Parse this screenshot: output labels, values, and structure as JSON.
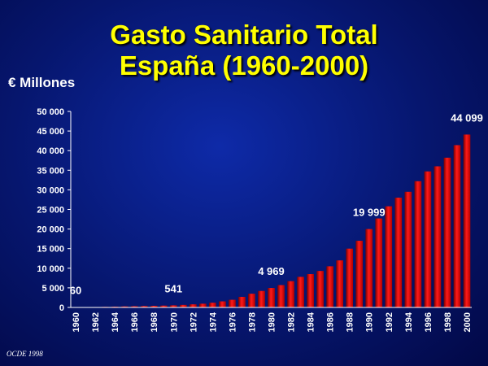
{
  "chart_data": {
    "type": "bar",
    "title": "Gasto Sanitario Total",
    "subtitle": "España (1960-2000)",
    "ylabel": "€ Millones",
    "source": "OCDE 1998",
    "ylim": [
      0,
      50000
    ],
    "yticks": [
      "50 000",
      "45 000",
      "40 000",
      "35 000",
      "30 000",
      "25 000",
      "20 000",
      "15 000",
      "10 000",
      "5 000",
      "0"
    ],
    "categories": [
      "1960",
      "1961",
      "1962",
      "1963",
      "1964",
      "1965",
      "1966",
      "1967",
      "1968",
      "1969",
      "1970",
      "1971",
      "1972",
      "1973",
      "1974",
      "1975",
      "1976",
      "1977",
      "1978",
      "1979",
      "1980",
      "1981",
      "1982",
      "1983",
      "1984",
      "1985",
      "1986",
      "1987",
      "1988",
      "1989",
      "1990",
      "1991",
      "1992",
      "1993",
      "1994",
      "1995",
      "1996",
      "1997",
      "1998",
      "1999",
      "2000"
    ],
    "xtick_labels": [
      "1960",
      "1962",
      "1964",
      "1966",
      "1968",
      "1970",
      "1972",
      "1974",
      "1976",
      "1978",
      "1980",
      "1982",
      "1984",
      "1986",
      "1988",
      "1990",
      "1992",
      "1994",
      "1996",
      "1998",
      "2000"
    ],
    "values": [
      60,
      80,
      110,
      150,
      200,
      260,
      310,
      360,
      410,
      470,
      541,
      650,
      790,
      950,
      1200,
      1550,
      1950,
      2700,
      3500,
      4200,
      4969,
      5700,
      6700,
      7800,
      8500,
      9300,
      10500,
      12000,
      15000,
      17000,
      19999,
      22700,
      25800,
      28000,
      29500,
      32200,
      34700,
      36000,
      38200,
      41400,
      44099
    ],
    "data_labels": [
      {
        "index": 0,
        "text": "60"
      },
      {
        "index": 10,
        "text": "541"
      },
      {
        "index": 20,
        "text": "4 969"
      },
      {
        "index": 30,
        "text": "19 999"
      },
      {
        "index": 40,
        "text": "44 099"
      }
    ],
    "bar_color": "#ee0000",
    "grid": false
  }
}
